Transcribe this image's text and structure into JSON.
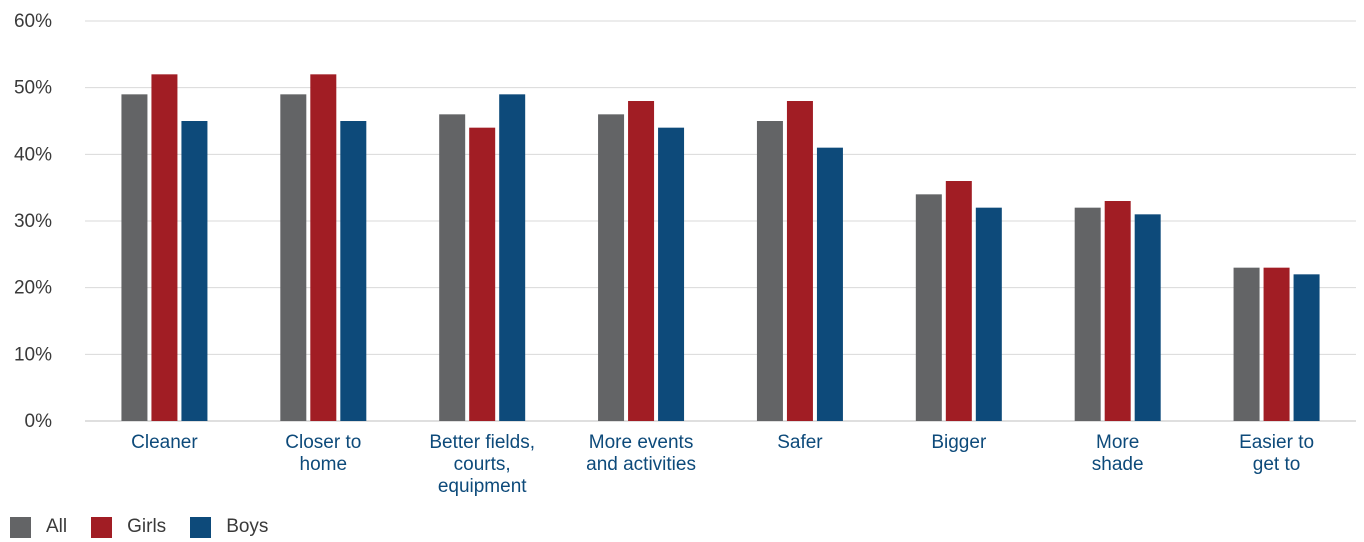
{
  "chart_data": {
    "type": "bar",
    "categories": [
      [
        "Cleaner"
      ],
      [
        "Closer to",
        "home"
      ],
      [
        "Better fields,",
        "courts,",
        "equipment"
      ],
      [
        "More events",
        "and activities"
      ],
      [
        "Safer"
      ],
      [
        "Bigger"
      ],
      [
        "More",
        "shade"
      ],
      [
        "Easier to",
        "get to"
      ]
    ],
    "series": [
      {
        "name": "All",
        "color": "#636466",
        "values": [
          49,
          49,
          46,
          46,
          45,
          34,
          32,
          23
        ]
      },
      {
        "name": "Girls",
        "color": "#a11d24",
        "values": [
          52,
          52,
          44,
          48,
          48,
          36,
          33,
          23
        ]
      },
      {
        "name": "Boys",
        "color": "#0d4a7a",
        "values": [
          45,
          45,
          49,
          44,
          41,
          32,
          31,
          22
        ]
      }
    ],
    "yticks": [
      "0%",
      "10%",
      "20%",
      "30%",
      "40%",
      "50%",
      "60%"
    ],
    "ylim": [
      0,
      60
    ],
    "grid": true,
    "legend_position": "bottom-left",
    "colors": {
      "category_label": "#0d4a7a",
      "tick_label": "#3a3a3a",
      "grid": "#d9d9d9"
    }
  }
}
